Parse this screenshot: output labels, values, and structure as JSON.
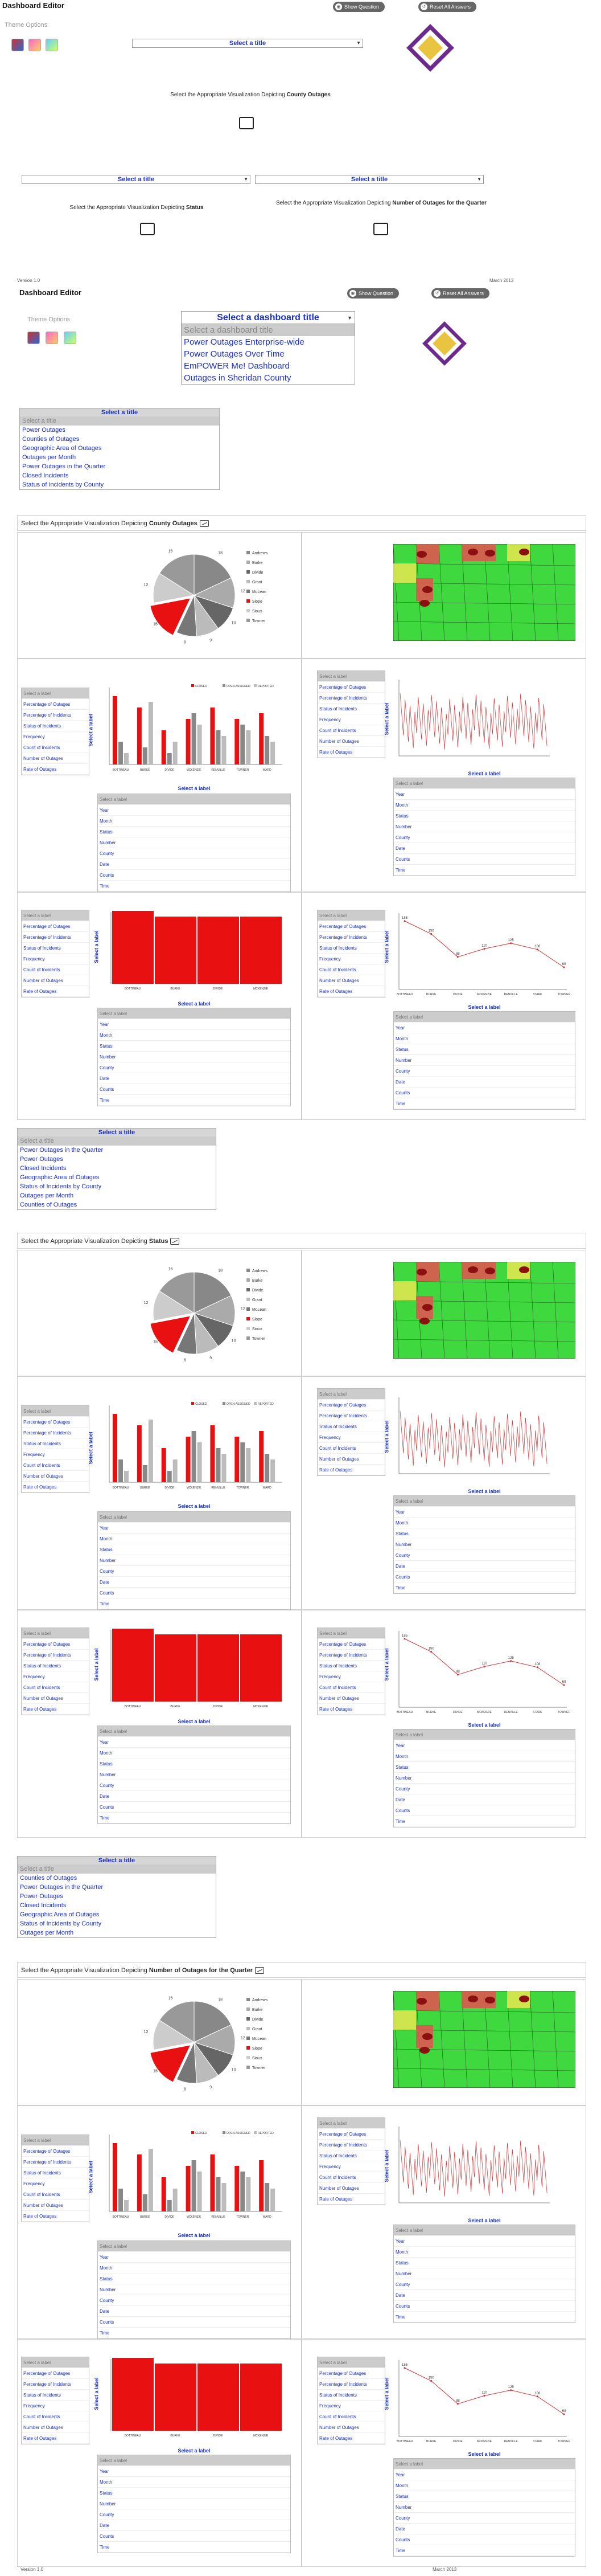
{
  "header": {
    "title": "Dashboard Editor",
    "show_question": "Show Question",
    "reset_answers": "Reset All Answers",
    "theme_label": "Theme Options",
    "version": "Version 1.0",
    "date": "March 2013"
  },
  "colors": {
    "accent": "#1a2fcc",
    "logo_outer": "#6b2a8c",
    "logo_inner": "#e8c440",
    "bar": "#e81010"
  },
  "preview": {
    "select_title": "Select a title",
    "prompt_county_pre": "Select the Appropriate Visualization Depicting",
    "prompt_county_bold": "County Outages",
    "prompt_status_bold": "Status",
    "prompt_quarter_bold": "Number of Outages for the Quarter"
  },
  "dashboard_title": {
    "header": "Select a dashboard title",
    "options": [
      "Select a dashboard title",
      "Power Outages Enterprise-wide",
      "Power Outages Over Time",
      "EmPOWER Me! Dashboard",
      "Outages in Sheridan County"
    ]
  },
  "title_list_1": {
    "header": "Select a title",
    "items": [
      "Select a title",
      "Power Outages",
      "Counties of Outages",
      "Geographic Area of Outages",
      "Outages per Month",
      "Power Outages in the Quarter",
      "Closed Incidents",
      "Status of Incidents by County"
    ]
  },
  "title_list_2": {
    "header": "Select a title",
    "items": [
      "Select a title",
      "Power Outages in the Quarter",
      "Power Outages",
      "Closed Incidents",
      "Geographic Area of Outages",
      "Status of Incidents by County",
      "Outages per Month",
      "Counties of Outages"
    ]
  },
  "title_list_3": {
    "header": "Select a title",
    "items": [
      "Select a title",
      "Counties of Outages",
      "Power Outages in the Quarter",
      "Power Outages",
      "Closed Incidents",
      "Geographic Area of Outages",
      "Status of Incidents by County",
      "Outages per Month"
    ]
  },
  "label_list": {
    "header": "Select a label",
    "items": [
      "Select a label",
      "Percentage of Outages",
      "Percentage of Incidents",
      "Status of Incidents",
      "Frequency",
      "Count of Incidents",
      "Number of Outages",
      "Rate of Outages"
    ]
  },
  "axis_list": {
    "header": "Select a label",
    "items": [
      "Select a label",
      "Year",
      "Month",
      "Status",
      "Number",
      "County",
      "Date",
      "Counts",
      "Time"
    ]
  },
  "pie_legend": [
    "Andrews",
    "Burke",
    "Divide",
    "Grant",
    "McLean",
    "Slope",
    "Sioux",
    "Towner"
  ],
  "bar_legend": [
    "CLOSED",
    "OPEN-ASSIGNED",
    "REPORTED"
  ],
  "bar_categories": [
    "BOTTINEAU",
    "BURKE",
    "DIVIDE",
    "MCKENZIE",
    "RENVILLE",
    "TOWNER",
    "WARD"
  ],
  "red_categories": [
    "BOTTINEAU",
    "BURKE",
    "DIVIDE",
    "MCKENZIE",
    "RENVILLE"
  ],
  "line_categories": [
    "BOTTINEAU",
    "BURKE",
    "DIVIDE",
    "MCKENZIE",
    "RENVILLE",
    "STARK",
    "TOWNER"
  ],
  "line_values": [
    185,
    150,
    88,
    110,
    125,
    108,
    60
  ],
  "pie_values": [
    18,
    12,
    10,
    9,
    8,
    15,
    12,
    16
  ],
  "y_label": "Select a label"
}
